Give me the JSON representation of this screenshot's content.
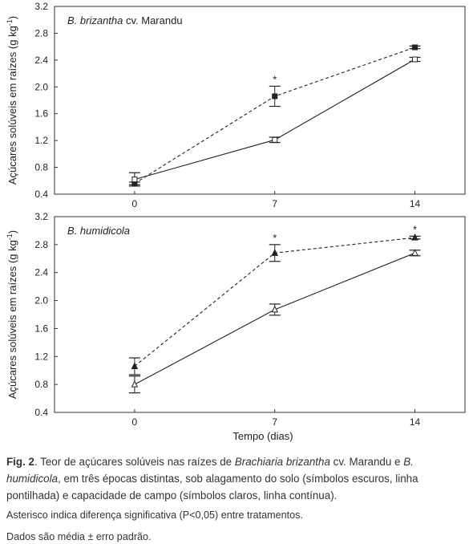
{
  "chart_data": [
    {
      "type": "line",
      "title": "",
      "panel_label": {
        "species": "B. brizantha",
        "cultivar": "cv. Marandu"
      },
      "ylabel": "Açúcares solúveis em raízes (g kg-1)",
      "xlabel": "",
      "x": [
        0,
        7,
        14
      ],
      "xlim": [
        -4,
        16.5
      ],
      "ylim": [
        0.4,
        3.2
      ],
      "x_ticks": [
        "0",
        "7",
        "14"
      ],
      "y_ticks": [
        "0.4",
        "0.8",
        "1.2",
        "1.6",
        "2.0",
        "2.4",
        "2.8",
        "3.2"
      ],
      "series": [
        {
          "condition": "flooded",
          "line": "dashed",
          "marker": "filled-square",
          "values": [
            0.56,
            1.86,
            2.59
          ],
          "error": [
            0.02,
            0.15,
            0.02
          ]
        },
        {
          "condition": "field-capacity",
          "line": "solid",
          "marker": "open-square",
          "values": [
            0.62,
            1.21,
            2.41
          ],
          "error": [
            0.1,
            0.04,
            0.03
          ]
        }
      ],
      "significance": [
        {
          "x": 7,
          "label": "*"
        }
      ]
    },
    {
      "type": "line",
      "title": "",
      "panel_label": {
        "species": "B. humidicola",
        "cultivar": ""
      },
      "ylabel": "Açúcares solúveis em raízes (g kg-1)",
      "xlabel": "Tempo (dias)",
      "x": [
        0,
        7,
        14
      ],
      "xlim": [
        -4,
        16.5
      ],
      "ylim": [
        0.4,
        3.2
      ],
      "x_ticks": [
        "0",
        "7",
        "14"
      ],
      "y_ticks": [
        "0.4",
        "0.8",
        "1.2",
        "1.6",
        "2.0",
        "2.4",
        "2.8",
        "3.2"
      ],
      "series": [
        {
          "condition": "flooded",
          "line": "dashed",
          "marker": "filled-triangle",
          "values": [
            1.06,
            2.68,
            2.9
          ],
          "error": [
            0.12,
            0.12,
            0.02
          ]
        },
        {
          "condition": "field-capacity",
          "line": "solid",
          "marker": "open-triangle",
          "values": [
            0.8,
            1.87,
            2.68
          ],
          "error": [
            0.12,
            0.08,
            0.04
          ]
        }
      ],
      "significance": [
        {
          "x": 7,
          "label": "*"
        },
        {
          "x": 14,
          "label": "*"
        }
      ]
    }
  ],
  "caption": {
    "fig_label": "Fig. 2",
    "text_1": ". Teor de açúcares solúveis nas raízes de ",
    "species_1": "Brachiaria brizantha",
    "text_2": " cv. Marandu e ",
    "species_2": "B. humidicola",
    "text_3": ", em três épocas distintas, sob alagamento do solo (símbolos escuros, linha pontilhada) e capacidade de campo (símbolos claros, linha contínua).",
    "line_2": "Asterisco indica diferença significativa (P<0,05) entre tratamentos.",
    "line_3": "Dados são média ± erro padrão."
  },
  "colors": {
    "line": "#222222",
    "axis": "#333333",
    "background": "#ffffff"
  }
}
